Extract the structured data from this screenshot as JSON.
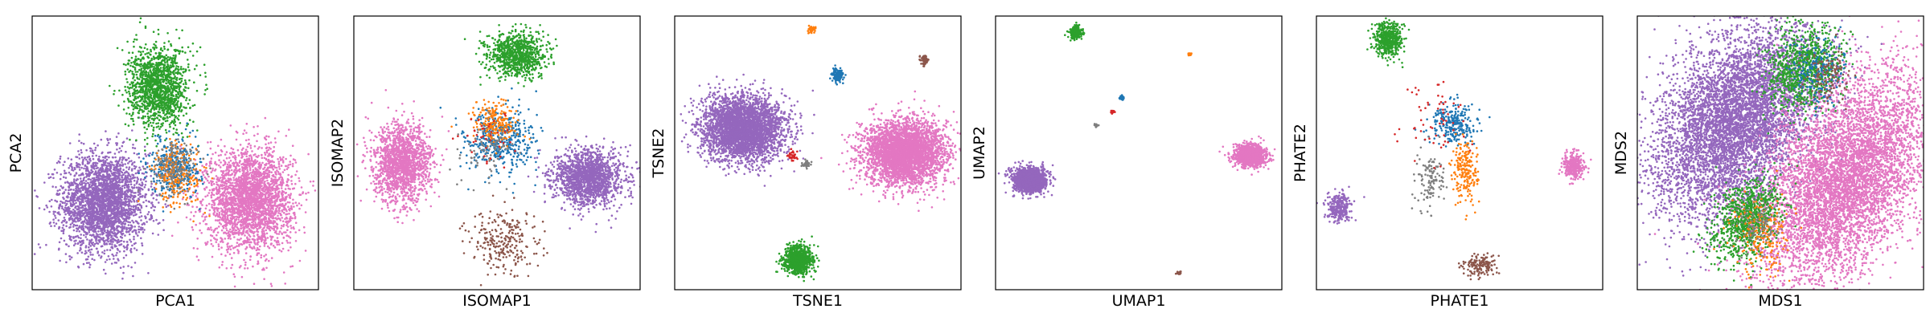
{
  "figure": {
    "panel_count": 6
  },
  "palette": {
    "blue": "#1f77b4",
    "orange": "#ff7f0e",
    "green": "#2ca02c",
    "red": "#d62728",
    "purple": "#9467bd",
    "brown": "#8c564b",
    "pink": "#e377c2",
    "gray": "#7f7f7f"
  },
  "chart_data": [
    {
      "type": "scatter",
      "xlabel": "PCA1",
      "ylabel": "PCA2",
      "xlim": [
        0,
        1
      ],
      "ylim": [
        0,
        1
      ],
      "grid": false,
      "ticks": false,
      "series": [
        {
          "color": "purple",
          "points": 2800,
          "cx": 0.25,
          "cy": 0.32,
          "sx": 0.075,
          "sy": 0.09
        },
        {
          "color": "pink",
          "points": 2800,
          "cx": 0.76,
          "cy": 0.33,
          "sx": 0.075,
          "sy": 0.09
        },
        {
          "color": "green",
          "points": 1400,
          "cx": 0.44,
          "cy": 0.74,
          "sx": 0.052,
          "sy": 0.075
        },
        {
          "color": "blue",
          "points": 350,
          "cx": 0.5,
          "cy": 0.45,
          "sx": 0.045,
          "sy": 0.05
        },
        {
          "color": "orange",
          "points": 220,
          "cx": 0.51,
          "cy": 0.42,
          "sx": 0.045,
          "sy": 0.06
        },
        {
          "color": "gray",
          "points": 150,
          "cx": 0.5,
          "cy": 0.44,
          "sx": 0.04,
          "sy": 0.05
        }
      ]
    },
    {
      "type": "scatter",
      "xlabel": "ISOMAP1",
      "ylabel": "ISOMAP2",
      "xlim": [
        0,
        1
      ],
      "ylim": [
        0,
        1
      ],
      "grid": false,
      "ticks": false,
      "series": [
        {
          "color": "pink",
          "points": 1600,
          "cx": 0.17,
          "cy": 0.46,
          "sx": 0.05,
          "sy": 0.07
        },
        {
          "color": "purple",
          "points": 1600,
          "cx": 0.82,
          "cy": 0.41,
          "sx": 0.06,
          "sy": 0.05
        },
        {
          "color": "green",
          "points": 900,
          "cx": 0.57,
          "cy": 0.86,
          "sx": 0.05,
          "sy": 0.04
        },
        {
          "color": "blue",
          "points": 450,
          "cx": 0.51,
          "cy": 0.54,
          "sx": 0.06,
          "sy": 0.06
        },
        {
          "color": "orange",
          "points": 200,
          "cx": 0.49,
          "cy": 0.61,
          "sx": 0.04,
          "sy": 0.04
        },
        {
          "color": "brown",
          "points": 260,
          "cx": 0.53,
          "cy": 0.17,
          "sx": 0.06,
          "sy": 0.06
        },
        {
          "color": "gray",
          "points": 80,
          "cx": 0.46,
          "cy": 0.5,
          "sx": 0.05,
          "sy": 0.05
        },
        {
          "color": "red",
          "points": 40,
          "cx": 0.47,
          "cy": 0.56,
          "sx": 0.05,
          "sy": 0.05
        }
      ]
    },
    {
      "type": "scatter",
      "xlabel": "TSNE1",
      "ylabel": "TSNE2",
      "xlim": [
        0,
        1
      ],
      "ylim": [
        0,
        1
      ],
      "grid": false,
      "ticks": false,
      "series": [
        {
          "color": "purple",
          "points": 3500,
          "cx": 0.24,
          "cy": 0.59,
          "sx": 0.072,
          "sy": 0.058
        },
        {
          "color": "pink",
          "points": 3500,
          "cx": 0.8,
          "cy": 0.5,
          "sx": 0.07,
          "sy": 0.06
        },
        {
          "color": "green",
          "points": 900,
          "cx": 0.43,
          "cy": 0.11,
          "sx": 0.025,
          "sy": 0.025
        },
        {
          "color": "blue",
          "points": 160,
          "cx": 0.57,
          "cy": 0.78,
          "sx": 0.01,
          "sy": 0.012
        },
        {
          "color": "orange",
          "points": 40,
          "cx": 0.48,
          "cy": 0.95,
          "sx": 0.006,
          "sy": 0.006
        },
        {
          "color": "brown",
          "points": 60,
          "cx": 0.87,
          "cy": 0.84,
          "sx": 0.007,
          "sy": 0.008
        },
        {
          "color": "red",
          "points": 35,
          "cx": 0.41,
          "cy": 0.49,
          "sx": 0.008,
          "sy": 0.008
        },
        {
          "color": "gray",
          "points": 45,
          "cx": 0.46,
          "cy": 0.46,
          "sx": 0.008,
          "sy": 0.006
        }
      ]
    },
    {
      "type": "scatter",
      "xlabel": "UMAP1",
      "ylabel": "UMAP2",
      "xlim": [
        0,
        1
      ],
      "ylim": [
        0,
        1
      ],
      "grid": false,
      "ticks": false,
      "series": [
        {
          "color": "purple",
          "points": 1500,
          "cx": 0.12,
          "cy": 0.4,
          "sx": 0.028,
          "sy": 0.022
        },
        {
          "color": "pink",
          "points": 1200,
          "cx": 0.89,
          "cy": 0.49,
          "sx": 0.026,
          "sy": 0.02
        },
        {
          "color": "green",
          "points": 300,
          "cx": 0.28,
          "cy": 0.94,
          "sx": 0.01,
          "sy": 0.01
        },
        {
          "color": "orange",
          "points": 20,
          "cx": 0.68,
          "cy": 0.86,
          "sx": 0.003,
          "sy": 0.003
        },
        {
          "color": "blue",
          "points": 50,
          "cx": 0.44,
          "cy": 0.7,
          "sx": 0.004,
          "sy": 0.004
        },
        {
          "color": "red",
          "points": 15,
          "cx": 0.41,
          "cy": 0.65,
          "sx": 0.003,
          "sy": 0.003
        },
        {
          "color": "gray",
          "points": 15,
          "cx": 0.35,
          "cy": 0.6,
          "sx": 0.003,
          "sy": 0.003
        },
        {
          "color": "brown",
          "points": 20,
          "cx": 0.64,
          "cy": 0.06,
          "sx": 0.004,
          "sy": 0.003
        }
      ]
    },
    {
      "type": "scatter",
      "xlabel": "PHATE1",
      "ylabel": "PHATE2",
      "xlim": [
        0,
        1
      ],
      "ylim": [
        0,
        1
      ],
      "grid": false,
      "ticks": false,
      "series": [
        {
          "color": "green",
          "points": 500,
          "cx": 0.25,
          "cy": 0.91,
          "sx": 0.025,
          "sy": 0.03
        },
        {
          "color": "purple",
          "points": 300,
          "cx": 0.08,
          "cy": 0.3,
          "sx": 0.02,
          "sy": 0.025
        },
        {
          "color": "pink",
          "points": 300,
          "cx": 0.9,
          "cy": 0.45,
          "sx": 0.018,
          "sy": 0.025
        },
        {
          "color": "blue",
          "points": 250,
          "cx": 0.48,
          "cy": 0.61,
          "sx": 0.04,
          "sy": 0.04
        },
        {
          "color": "orange",
          "points": 200,
          "cx": 0.52,
          "cy": 0.43,
          "sx": 0.025,
          "sy": 0.06
        },
        {
          "color": "gray",
          "points": 120,
          "cx": 0.4,
          "cy": 0.4,
          "sx": 0.025,
          "sy": 0.05
        },
        {
          "color": "red",
          "points": 60,
          "cx": 0.42,
          "cy": 0.62,
          "sx": 0.06,
          "sy": 0.08
        },
        {
          "color": "brown",
          "points": 150,
          "cx": 0.57,
          "cy": 0.09,
          "sx": 0.03,
          "sy": 0.02
        }
      ]
    },
    {
      "type": "scatter",
      "xlabel": "MDS1",
      "ylabel": "MDS2",
      "xlim": [
        0,
        1
      ],
      "ylim": [
        0,
        1
      ],
      "grid": false,
      "ticks": false,
      "series": [
        {
          "color": "purple",
          "points": 6000,
          "cx": 0.35,
          "cy": 0.62,
          "sx": 0.12,
          "sy": 0.19,
          "rot": -0.55
        },
        {
          "color": "pink",
          "points": 6000,
          "cx": 0.72,
          "cy": 0.4,
          "sx": 0.12,
          "sy": 0.21,
          "rot": -0.55
        },
        {
          "color": "green",
          "points": 900,
          "cx": 0.58,
          "cy": 0.81,
          "sx": 0.06,
          "sy": 0.08,
          "rot": -0.5
        },
        {
          "color": "green",
          "points": 900,
          "cx": 0.38,
          "cy": 0.25,
          "sx": 0.05,
          "sy": 0.08,
          "rot": -0.5
        },
        {
          "color": "orange",
          "points": 220,
          "cx": 0.43,
          "cy": 0.2,
          "sx": 0.05,
          "sy": 0.07
        },
        {
          "color": "blue",
          "points": 200,
          "cx": 0.63,
          "cy": 0.8,
          "sx": 0.05,
          "sy": 0.06
        },
        {
          "color": "brown",
          "points": 120,
          "cx": 0.66,
          "cy": 0.78,
          "sx": 0.04,
          "sy": 0.05
        },
        {
          "color": "gray",
          "points": 100,
          "cx": 0.42,
          "cy": 0.24,
          "sx": 0.04,
          "sy": 0.05
        }
      ]
    }
  ]
}
